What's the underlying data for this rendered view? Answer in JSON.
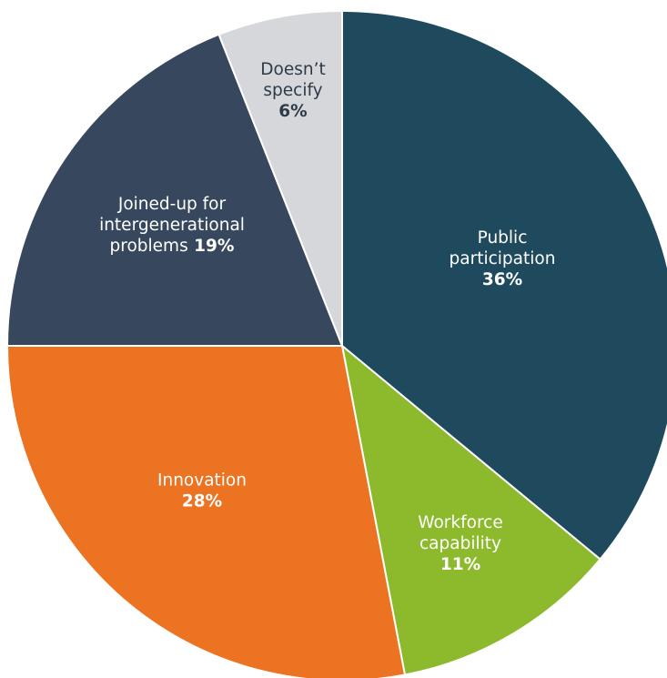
{
  "chart_data": {
    "type": "pie",
    "slices": [
      {
        "name": "Public participation",
        "label_lines": [
          "Public",
          "participation"
        ],
        "value_label": "36%",
        "value": 36,
        "color": "#1f4a5e",
        "label_color": "#ffffff",
        "pct_color": "#ffffff"
      },
      {
        "name": "Workforce capability",
        "label_lines": [
          "Workforce",
          "capability"
        ],
        "value_label": "11%",
        "value": 11,
        "color": "#8cba2c",
        "label_color": "#ffffff",
        "pct_color": "#ffffff"
      },
      {
        "name": "Innovation",
        "label_lines": [
          "Innovation"
        ],
        "value_label": "28%",
        "value": 28,
        "color": "#ec7321",
        "label_color": "#ffffff",
        "pct_color": "#ffffff"
      },
      {
        "name": "Joined-up for intergenerational problems",
        "label_lines": [
          "Joined-up for",
          "intergenerational",
          "problems"
        ],
        "value_label": "19%",
        "value": 19,
        "inline_pct": true,
        "color": "#37485e",
        "label_color": "#ffffff",
        "pct_color": "#ffffff"
      },
      {
        "name": "Doesn't specify",
        "label_lines": [
          "Doesn’t",
          "specify"
        ],
        "value_label": "6%",
        "value": 6,
        "color": "#d6d7da",
        "label_color": "#2f3a48",
        "pct_color": "#2f3a48"
      }
    ]
  }
}
